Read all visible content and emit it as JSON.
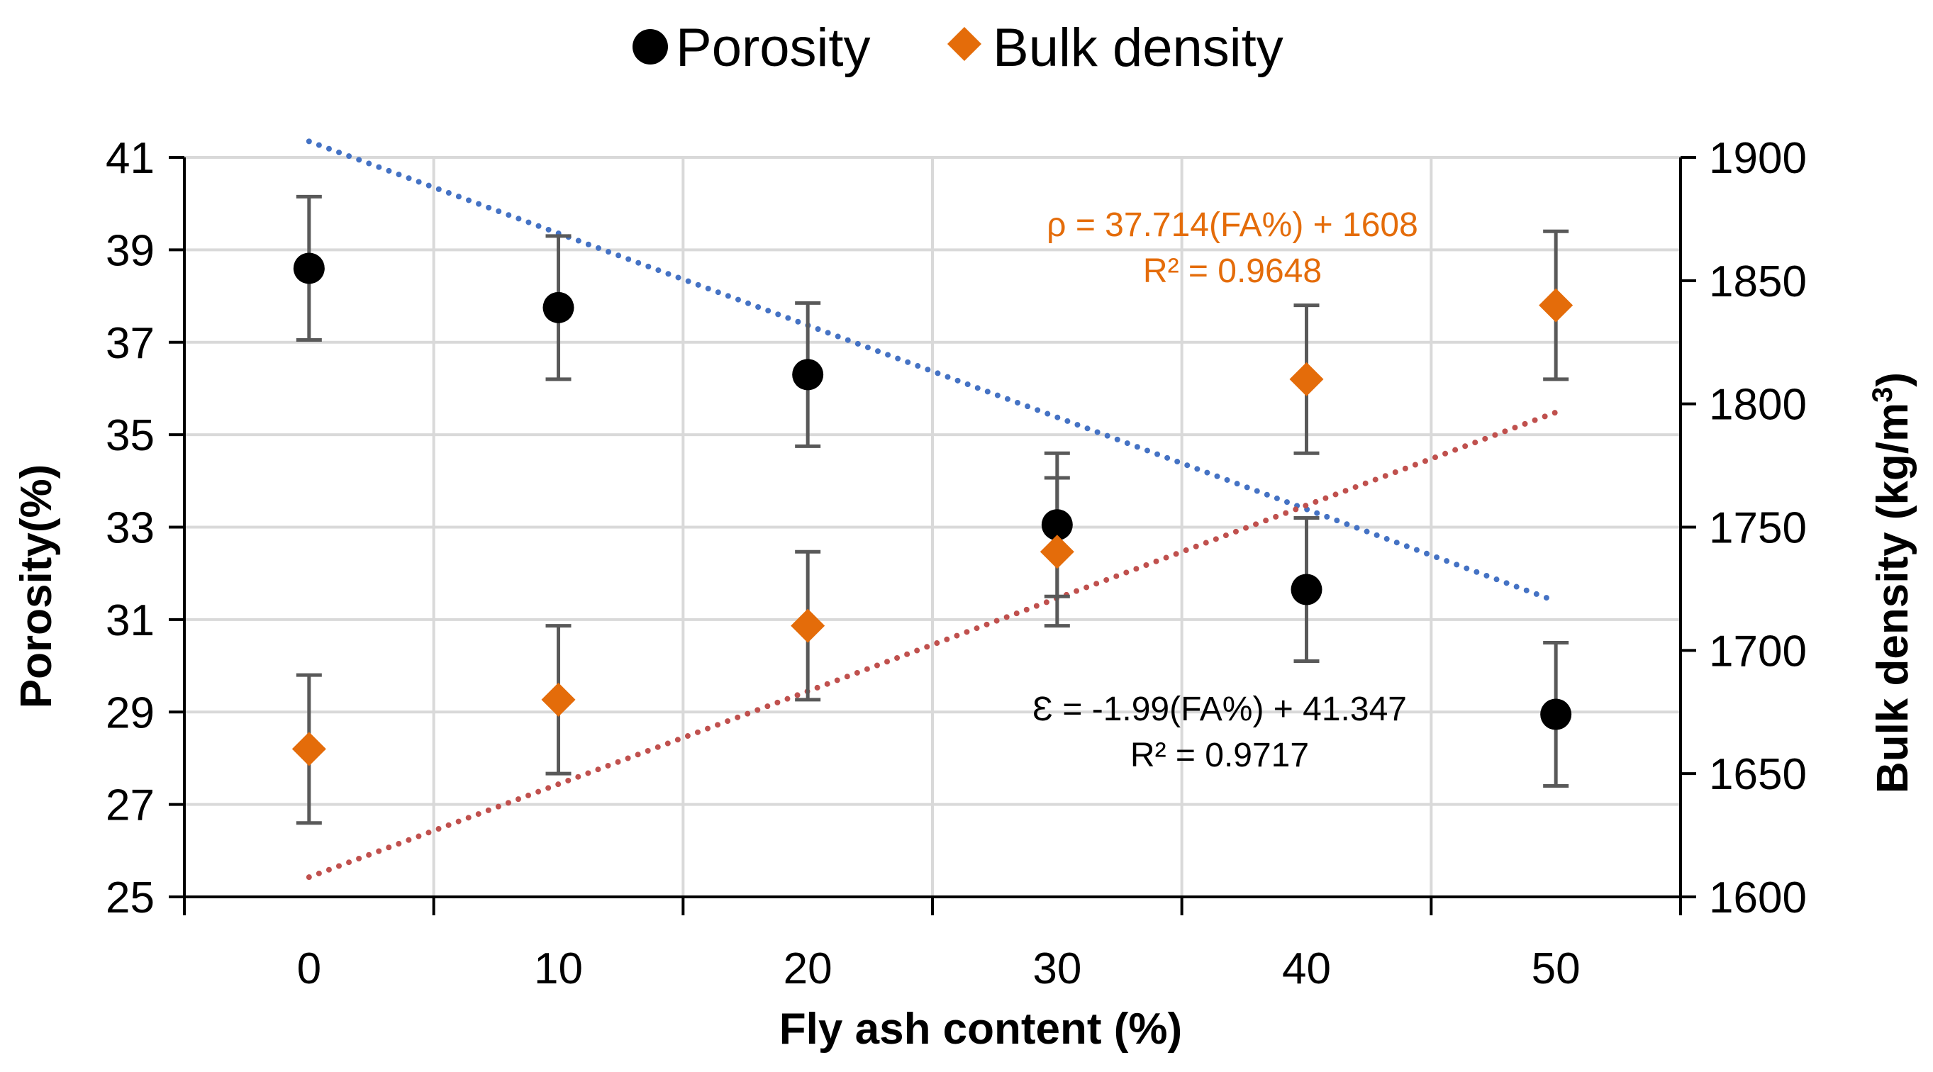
{
  "chart_data": {
    "type": "scatter",
    "legend": {
      "position": "top",
      "entries": [
        "Porosity",
        "Bulk density"
      ]
    },
    "x": [
      0,
      10,
      20,
      30,
      40,
      50
    ],
    "xlabel": "Fly ash content (%)",
    "xlim": [
      -5,
      55
    ],
    "xticks": [
      0,
      10,
      20,
      30,
      40,
      50
    ],
    "grid": true,
    "y_left": {
      "label": "Porosity(%)",
      "lim": [
        25,
        41
      ],
      "ticks": [
        25,
        27,
        29,
        31,
        33,
        35,
        37,
        39,
        41
      ]
    },
    "y_right": {
      "label": "Bulk density (kg/m",
      "label_sup": "3",
      "label_end": ")",
      "lim": [
        1600,
        1900
      ],
      "ticks": [
        1600,
        1650,
        1700,
        1750,
        1800,
        1850,
        1900
      ]
    },
    "series": [
      {
        "name": "Porosity",
        "axis": "left",
        "marker": "circle",
        "color": "#000000",
        "values": [
          38.6,
          37.75,
          36.3,
          33.05,
          31.65,
          28.95
        ],
        "error": [
          1.55,
          1.55,
          1.55,
          1.55,
          1.55,
          1.55
        ],
        "trendline": {
          "slope": -1.99,
          "intercept": 41.347,
          "color": "#4472C4"
        },
        "annotation": {
          "line1": "Ɛ = -1.99(FA%) + 41.347",
          "line2": "R² = 0.9717",
          "color": "#000000"
        }
      },
      {
        "name": "Bulk density",
        "axis": "right",
        "marker": "diamond",
        "color": "#E46C0A",
        "values": [
          1660,
          1680,
          1710,
          1740,
          1810,
          1840
        ],
        "error": [
          30,
          30,
          30,
          30,
          30,
          30
        ],
        "trendline": {
          "slope": 37.714,
          "intercept": 1608,
          "color": "#C0504D"
        },
        "annotation": {
          "line1": "ρ = 37.714(FA%) + 1608",
          "line2": "R² = 0.9648",
          "color": "#E46C0A"
        }
      }
    ]
  }
}
